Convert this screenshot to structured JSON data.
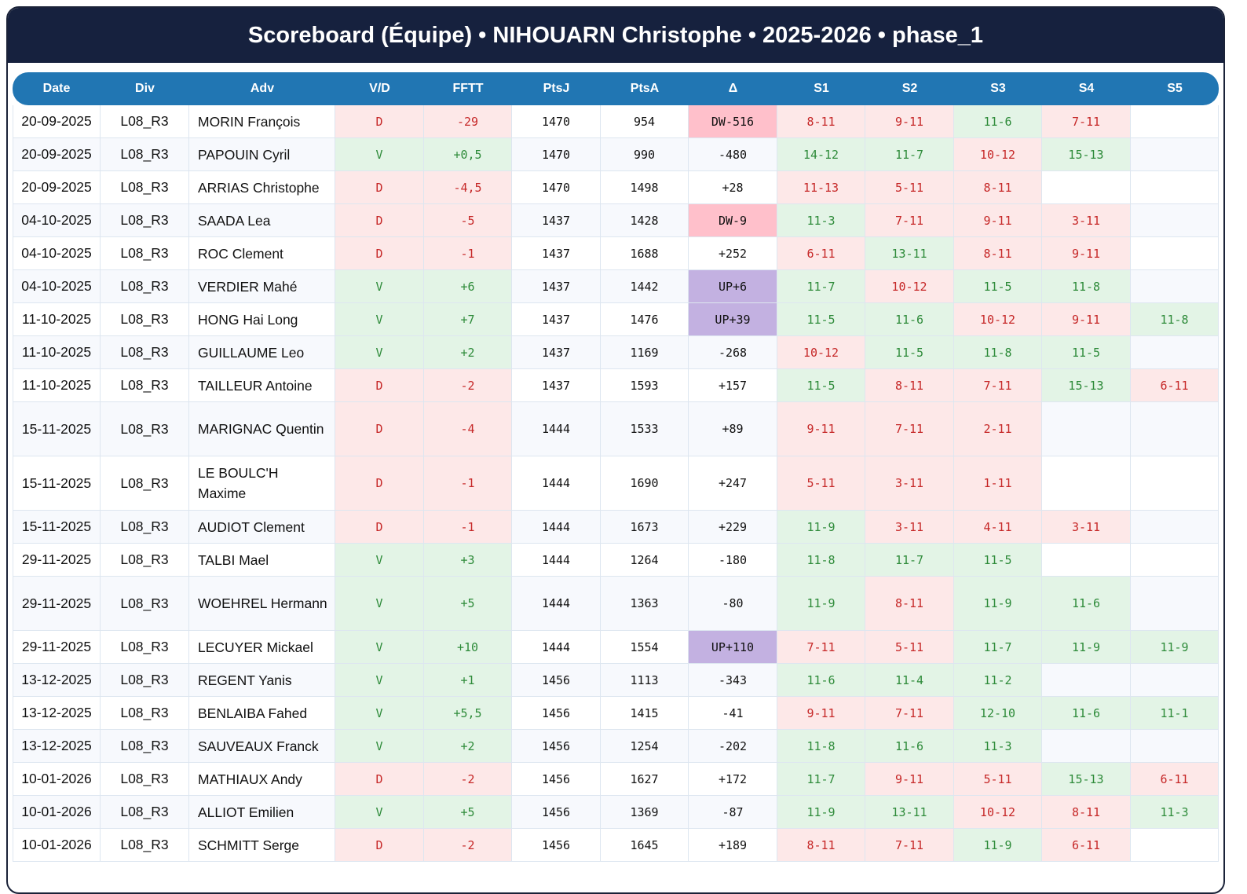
{
  "title": "Scoreboard (Équipe) • NIHOUARN Christophe • 2025-2026 • phase_1",
  "colors": {
    "header_bg": "#16213e",
    "table_header_bg": "#2176b3",
    "win_bg": "#e3f4e6",
    "win_text": "#2e8b3a",
    "loss_bg": "#fde8e8",
    "loss_text": "#c62828",
    "dw_bg": "#ffc0cb",
    "up_bg": "#c3b1e1"
  },
  "columns": [
    "Date",
    "Div",
    "Adv",
    "V/D",
    "FFTT",
    "PtsJ",
    "PtsA",
    "Δ",
    "S1",
    "S2",
    "S3",
    "S4",
    "S5"
  ],
  "rows": [
    {
      "date": "20-09-2025",
      "div": "L08_R3",
      "adv": "MORIN François",
      "vd": "D",
      "fftt": "-29",
      "ptsj": "1470",
      "ptsa": "954",
      "delta": "DW-516",
      "sets": [
        "8-11",
        "9-11",
        "11-6",
        "7-11",
        ""
      ]
    },
    {
      "date": "20-09-2025",
      "div": "L08_R3",
      "adv": "PAPOUIN Cyril",
      "vd": "V",
      "fftt": "+0,5",
      "ptsj": "1470",
      "ptsa": "990",
      "delta": "-480",
      "sets": [
        "14-12",
        "11-7",
        "10-12",
        "15-13",
        ""
      ]
    },
    {
      "date": "20-09-2025",
      "div": "L08_R3",
      "adv": "ARRIAS Christophe",
      "vd": "D",
      "fftt": "-4,5",
      "ptsj": "1470",
      "ptsa": "1498",
      "delta": "+28",
      "sets": [
        "11-13",
        "5-11",
        "8-11",
        "",
        ""
      ]
    },
    {
      "date": "04-10-2025",
      "div": "L08_R3",
      "adv": "SAADA Lea",
      "vd": "D",
      "fftt": "-5",
      "ptsj": "1437",
      "ptsa": "1428",
      "delta": "DW-9",
      "sets": [
        "11-3",
        "7-11",
        "9-11",
        "3-11",
        ""
      ]
    },
    {
      "date": "04-10-2025",
      "div": "L08_R3",
      "adv": "ROC Clement",
      "vd": "D",
      "fftt": "-1",
      "ptsj": "1437",
      "ptsa": "1688",
      "delta": "+252",
      "sets": [
        "6-11",
        "13-11",
        "8-11",
        "9-11",
        ""
      ]
    },
    {
      "date": "04-10-2025",
      "div": "L08_R3",
      "adv": "VERDIER Mahé",
      "vd": "V",
      "fftt": "+6",
      "ptsj": "1437",
      "ptsa": "1442",
      "delta": "UP+6",
      "sets": [
        "11-7",
        "10-12",
        "11-5",
        "11-8",
        ""
      ]
    },
    {
      "date": "11-10-2025",
      "div": "L08_R3",
      "adv": "HONG Hai Long",
      "vd": "V",
      "fftt": "+7",
      "ptsj": "1437",
      "ptsa": "1476",
      "delta": "UP+39",
      "sets": [
        "11-5",
        "11-6",
        "10-12",
        "9-11",
        "11-8"
      ]
    },
    {
      "date": "11-10-2025",
      "div": "L08_R3",
      "adv": "GUILLAUME Leo",
      "vd": "V",
      "fftt": "+2",
      "ptsj": "1437",
      "ptsa": "1169",
      "delta": "-268",
      "sets": [
        "10-12",
        "11-5",
        "11-8",
        "11-5",
        ""
      ]
    },
    {
      "date": "11-10-2025",
      "div": "L08_R3",
      "adv": "TAILLEUR Antoine",
      "vd": "D",
      "fftt": "-2",
      "ptsj": "1437",
      "ptsa": "1593",
      "delta": "+157",
      "sets": [
        "11-5",
        "8-11",
        "7-11",
        "15-13",
        "6-11"
      ]
    },
    {
      "date": "15-11-2025",
      "div": "L08_R3",
      "adv": "MARIGNAC Quentin",
      "vd": "D",
      "fftt": "-4",
      "ptsj": "1444",
      "ptsa": "1533",
      "delta": "+89",
      "sets": [
        "9-11",
        "7-11",
        "2-11",
        "",
        ""
      ]
    },
    {
      "date": "15-11-2025",
      "div": "L08_R3",
      "adv": "LE BOULC'H Maxime",
      "vd": "D",
      "fftt": "-1",
      "ptsj": "1444",
      "ptsa": "1690",
      "delta": "+247",
      "sets": [
        "5-11",
        "3-11",
        "1-11",
        "",
        ""
      ]
    },
    {
      "date": "15-11-2025",
      "div": "L08_R3",
      "adv": "AUDIOT Clement",
      "vd": "D",
      "fftt": "-1",
      "ptsj": "1444",
      "ptsa": "1673",
      "delta": "+229",
      "sets": [
        "11-9",
        "3-11",
        "4-11",
        "3-11",
        ""
      ]
    },
    {
      "date": "29-11-2025",
      "div": "L08_R3",
      "adv": "TALBI Mael",
      "vd": "V",
      "fftt": "+3",
      "ptsj": "1444",
      "ptsa": "1264",
      "delta": "-180",
      "sets": [
        "11-8",
        "11-7",
        "11-5",
        "",
        ""
      ]
    },
    {
      "date": "29-11-2025",
      "div": "L08_R3",
      "adv": "WOEHREL Hermann",
      "vd": "V",
      "fftt": "+5",
      "ptsj": "1444",
      "ptsa": "1363",
      "delta": "-80",
      "sets": [
        "11-9",
        "8-11",
        "11-9",
        "11-6",
        ""
      ]
    },
    {
      "date": "29-11-2025",
      "div": "L08_R3",
      "adv": "LECUYER Mickael",
      "vd": "V",
      "fftt": "+10",
      "ptsj": "1444",
      "ptsa": "1554",
      "delta": "UP+110",
      "sets": [
        "7-11",
        "5-11",
        "11-7",
        "11-9",
        "11-9"
      ]
    },
    {
      "date": "13-12-2025",
      "div": "L08_R3",
      "adv": "REGENT Yanis",
      "vd": "V",
      "fftt": "+1",
      "ptsj": "1456",
      "ptsa": "1113",
      "delta": "-343",
      "sets": [
        "11-6",
        "11-4",
        "11-2",
        "",
        ""
      ]
    },
    {
      "date": "13-12-2025",
      "div": "L08_R3",
      "adv": "BENLAIBA Fahed",
      "vd": "V",
      "fftt": "+5,5",
      "ptsj": "1456",
      "ptsa": "1415",
      "delta": "-41",
      "sets": [
        "9-11",
        "7-11",
        "12-10",
        "11-6",
        "11-1"
      ]
    },
    {
      "date": "13-12-2025",
      "div": "L08_R3",
      "adv": "SAUVEAUX Franck",
      "vd": "V",
      "fftt": "+2",
      "ptsj": "1456",
      "ptsa": "1254",
      "delta": "-202",
      "sets": [
        "11-8",
        "11-6",
        "11-3",
        "",
        ""
      ]
    },
    {
      "date": "10-01-2026",
      "div": "L08_R3",
      "adv": "MATHIAUX Andy",
      "vd": "D",
      "fftt": "-2",
      "ptsj": "1456",
      "ptsa": "1627",
      "delta": "+172",
      "sets": [
        "11-7",
        "9-11",
        "5-11",
        "15-13",
        "6-11"
      ]
    },
    {
      "date": "10-01-2026",
      "div": "L08_R3",
      "adv": "ALLIOT Emilien",
      "vd": "V",
      "fftt": "+5",
      "ptsj": "1456",
      "ptsa": "1369",
      "delta": "-87",
      "sets": [
        "11-9",
        "13-11",
        "10-12",
        "8-11",
        "11-3"
      ]
    },
    {
      "date": "10-01-2026",
      "div": "L08_R3",
      "adv": "SCHMITT Serge",
      "vd": "D",
      "fftt": "-2",
      "ptsj": "1456",
      "ptsa": "1645",
      "delta": "+189",
      "sets": [
        "8-11",
        "7-11",
        "11-9",
        "6-11",
        ""
      ]
    }
  ]
}
